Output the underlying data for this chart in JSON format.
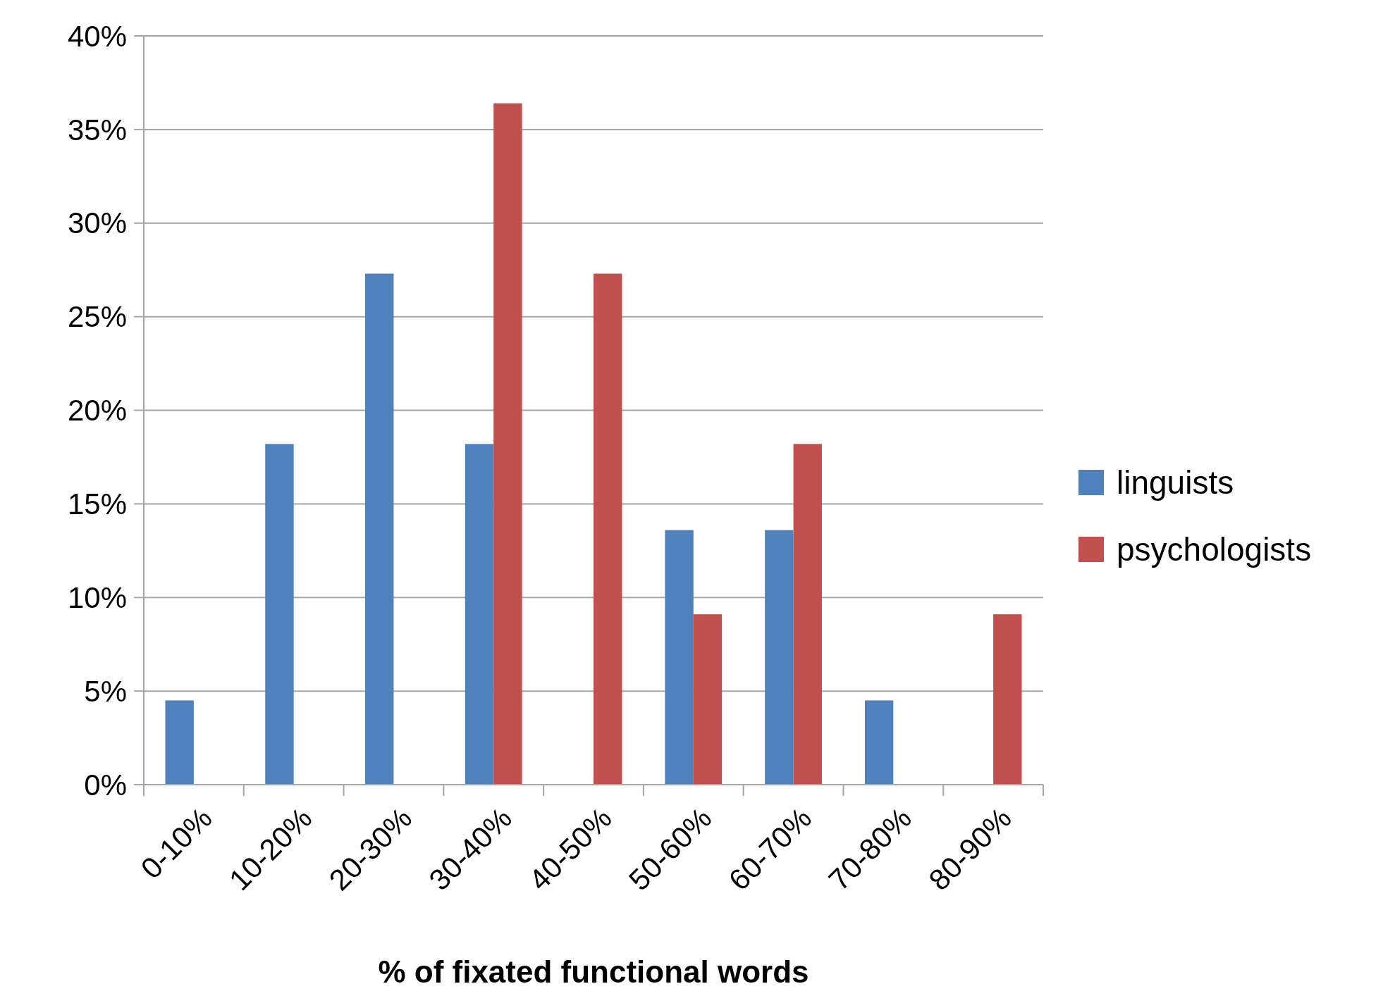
{
  "chart_data": {
    "type": "bar",
    "xlabel": "% of fixated functional words",
    "categories": [
      "0-10%",
      "10-20%",
      "20-30%",
      "30-40%",
      "40-50%",
      "50-60%",
      "60-70%",
      "70-80%",
      "80-90%"
    ],
    "series": [
      {
        "name": "linguists",
        "color": "#4f81bd",
        "values": [
          4.5,
          18.2,
          27.3,
          18.2,
          null,
          13.6,
          13.6,
          4.5,
          null
        ]
      },
      {
        "name": "psychologists",
        "color": "#c0504d",
        "values": [
          null,
          null,
          null,
          36.4,
          27.3,
          9.1,
          18.2,
          null,
          9.1
        ]
      }
    ],
    "ylim": [
      0,
      40
    ],
    "yticks": [
      {
        "value": 0,
        "label": "0%"
      },
      {
        "value": 5,
        "label": "5%"
      },
      {
        "value": 10,
        "label": "10%"
      },
      {
        "value": 15,
        "label": "15%"
      },
      {
        "value": 20,
        "label": "20%"
      },
      {
        "value": 25,
        "label": "25%"
      },
      {
        "value": 30,
        "label": "30%"
      },
      {
        "value": 35,
        "label": "35%"
      },
      {
        "value": 40,
        "label": "40%"
      }
    ],
    "grid": "y",
    "legend": "right"
  }
}
